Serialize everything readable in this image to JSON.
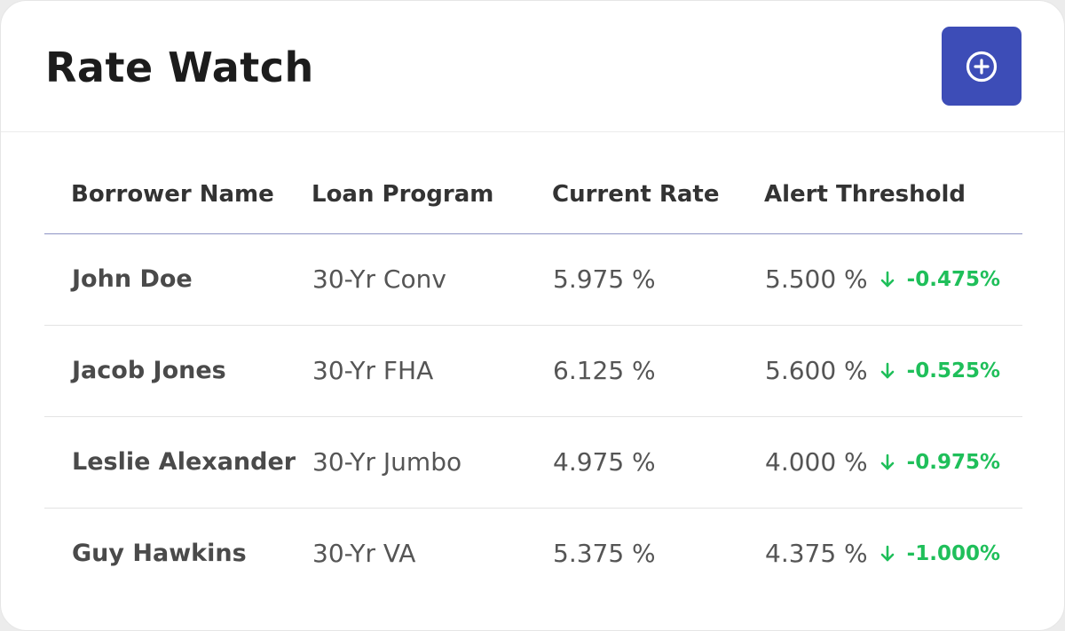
{
  "header": {
    "title": "Rate Watch",
    "add_icon": "plus-circle-icon"
  },
  "colors": {
    "accent": "#3d4db7",
    "positive": "#1fbf5a",
    "header_rule": "#8d93c4"
  },
  "table": {
    "columns": [
      "Borrower Name",
      "Loan Program",
      "Current Rate",
      "Alert Threshold"
    ],
    "rows": [
      {
        "name": "John Doe",
        "program": "30-Yr Conv",
        "current": "5.975 %",
        "threshold": "5.500 %",
        "delta": "-0.475%"
      },
      {
        "name": "Jacob Jones",
        "program": "30-Yr FHA",
        "current": "6.125 %",
        "threshold": "5.600 %",
        "delta": "-0.525%"
      },
      {
        "name": "Leslie Alexander",
        "program": "30-Yr Jumbo",
        "current": "4.975 %",
        "threshold": "4.000 %",
        "delta": "-0.975%"
      },
      {
        "name": "Guy Hawkins",
        "program": "30-Yr VA",
        "current": "5.375 %",
        "threshold": "4.375 %",
        "delta": "-1.000%"
      }
    ]
  }
}
